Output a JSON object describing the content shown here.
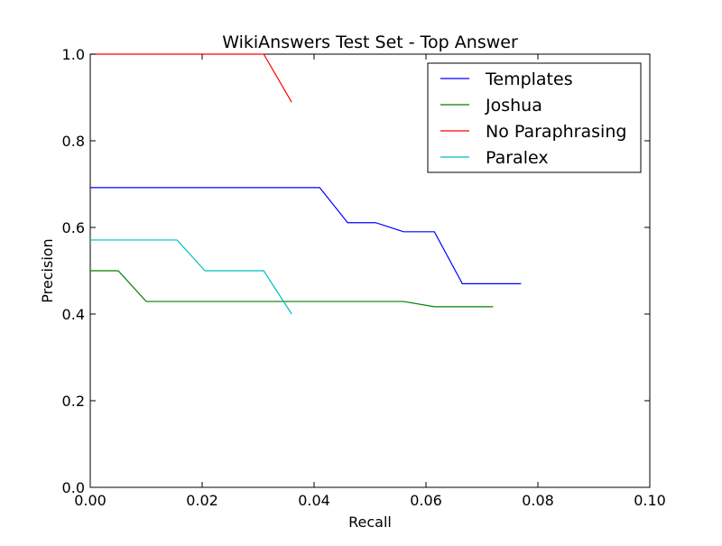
{
  "chart_data": {
    "type": "line",
    "title": "WikiAnswers Test Set - Top Answer",
    "xlabel": "Recall",
    "ylabel": "Precision",
    "xlim": [
      0.0,
      0.1
    ],
    "ylim": [
      0.0,
      1.0
    ],
    "xticks": [
      "0.00",
      "0.02",
      "0.04",
      "0.06",
      "0.08",
      "0.10"
    ],
    "yticks": [
      "0.0",
      "0.2",
      "0.4",
      "0.6",
      "0.8",
      "1.0"
    ],
    "grid": false,
    "legend_position": "top-right",
    "series": [
      {
        "name": "Templates",
        "color": "#0000ff",
        "x": [
          0.0,
          0.041,
          0.046,
          0.051,
          0.056,
          0.0615,
          0.0665,
          0.077
        ],
        "y": [
          0.692,
          0.692,
          0.611,
          0.611,
          0.59,
          0.59,
          0.47,
          0.47
        ]
      },
      {
        "name": "Joshua",
        "color": "#008000",
        "x": [
          0.0,
          0.005,
          0.01,
          0.056,
          0.0615,
          0.072
        ],
        "y": [
          0.5,
          0.5,
          0.429,
          0.429,
          0.417,
          0.417
        ]
      },
      {
        "name": "No Paraphrasing",
        "color": "#ff0000",
        "x": [
          0.0,
          0.031,
          0.036
        ],
        "y": [
          1.0,
          1.0,
          0.889
        ]
      },
      {
        "name": "Paralex",
        "color": "#00bfbf",
        "x": [
          0.0,
          0.0155,
          0.0205,
          0.031,
          0.036
        ],
        "y": [
          0.571,
          0.571,
          0.5,
          0.5,
          0.4
        ]
      }
    ]
  }
}
